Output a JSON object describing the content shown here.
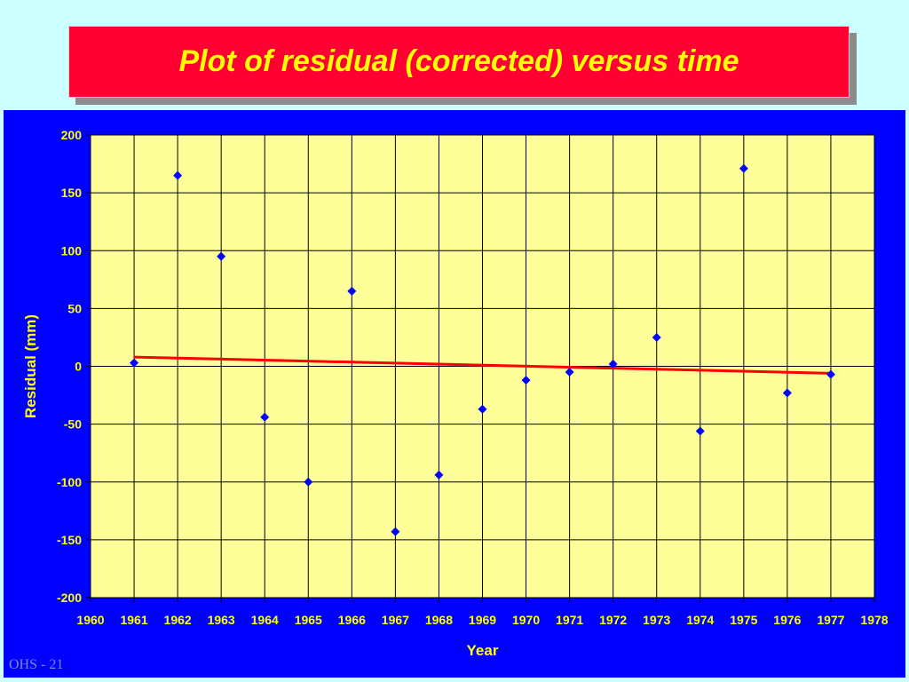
{
  "slide": {
    "title": "Plot of residual (corrected) versus time",
    "footer": "OHS - 21"
  },
  "colors": {
    "background": "#ccffff",
    "title_box": "#ff0033",
    "title_text": "#ffff00",
    "chart_panel": "#0000ff",
    "plot_area": "#ffff99",
    "axis_text": "#ffff00",
    "markers": "#0000ff",
    "trend_line": "#ff0000"
  },
  "chart_data": {
    "type": "scatter",
    "title": "",
    "xlabel": "Year",
    "ylabel": "Residual (mm)",
    "xlim": [
      1960,
      1978
    ],
    "ylim": [
      -200,
      200
    ],
    "xticks": [
      1960,
      1961,
      1962,
      1963,
      1964,
      1965,
      1966,
      1967,
      1968,
      1969,
      1970,
      1971,
      1972,
      1973,
      1974,
      1975,
      1976,
      1977,
      1978
    ],
    "yticks": [
      200,
      150,
      100,
      50,
      0,
      -50,
      -100,
      -150,
      -200
    ],
    "grid": true,
    "legend": "none",
    "series": [
      {
        "marker": "diamond",
        "x": [
          1961,
          1962,
          1963,
          1964,
          1965,
          1966,
          1967,
          1968,
          1969,
          1970,
          1971,
          1972,
          1973,
          1974,
          1975,
          1976,
          1977
        ],
        "y": [
          3,
          165,
          95,
          -44,
          -100,
          65,
          -143,
          -94,
          -37,
          -12,
          -5,
          2,
          25,
          -56,
          171,
          -23,
          -7
        ]
      }
    ],
    "trend_line": {
      "x": [
        1961,
        1977
      ],
      "y": [
        8,
        -6
      ]
    }
  }
}
